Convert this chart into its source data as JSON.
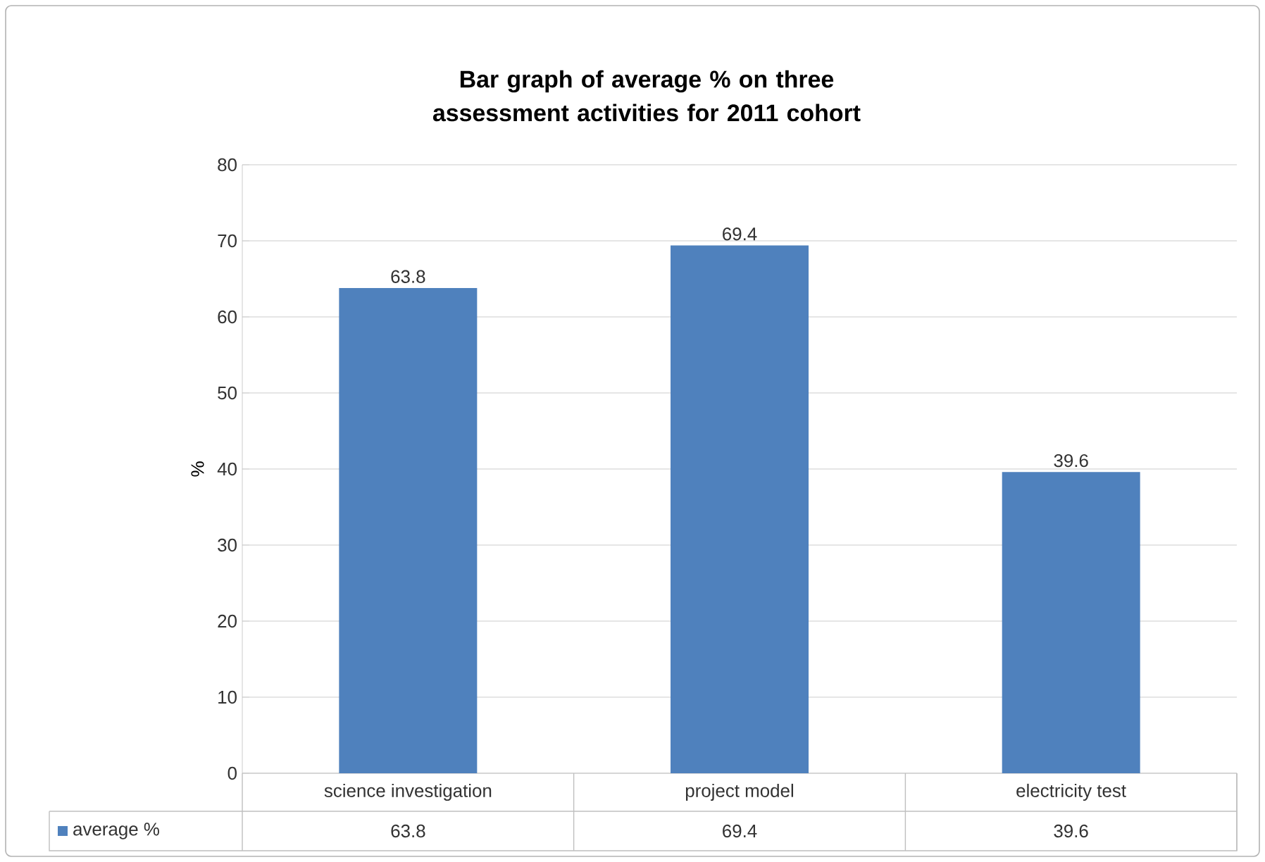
{
  "chart_data": {
    "type": "bar",
    "title": "Bar graph of average % on three assessment activities for 2011 cohort",
    "ylabel": "%",
    "categories": [
      "science investigation",
      "project model",
      "electricity test"
    ],
    "series": [
      {
        "name": "average %",
        "color": "#4f81bd",
        "values": [
          63.8,
          69.4,
          39.6
        ],
        "value_labels": [
          "63.8",
          "69.4",
          "39.6"
        ]
      }
    ],
    "ylim": [
      0,
      80
    ],
    "yticks": [
      0,
      10,
      20,
      30,
      40,
      50,
      60,
      70,
      80
    ],
    "annotations": [
      "63.8",
      "69.4",
      "39.6"
    ],
    "grid": "y",
    "legend": "bottom"
  }
}
